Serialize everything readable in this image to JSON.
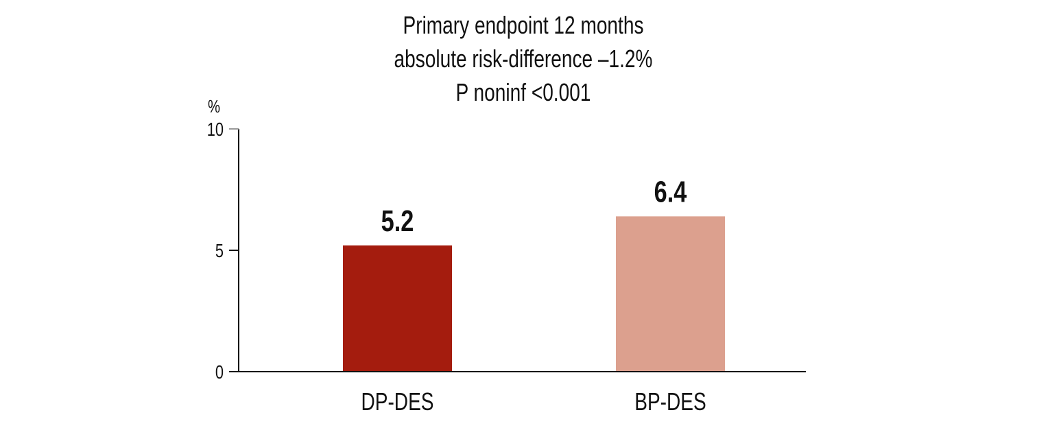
{
  "chart_data": {
    "type": "bar",
    "title_lines": [
      "Primary endpoint 12 months",
      "absolute risk-difference –1.2%",
      "P noninf <0.001"
    ],
    "ylabel": "%",
    "xlabel": "",
    "ylim": [
      0,
      10
    ],
    "yticks": [
      0,
      5,
      10
    ],
    "ytick_labels": [
      "0",
      "5",
      "10"
    ],
    "categories": [
      "DP-DES",
      "BP-DES"
    ],
    "values": [
      5.2,
      6.4
    ],
    "value_labels": [
      "5.2",
      "6.4"
    ],
    "colors": [
      "#A41C0E",
      "#DCA08E"
    ],
    "grid": false,
    "legend": "none"
  }
}
